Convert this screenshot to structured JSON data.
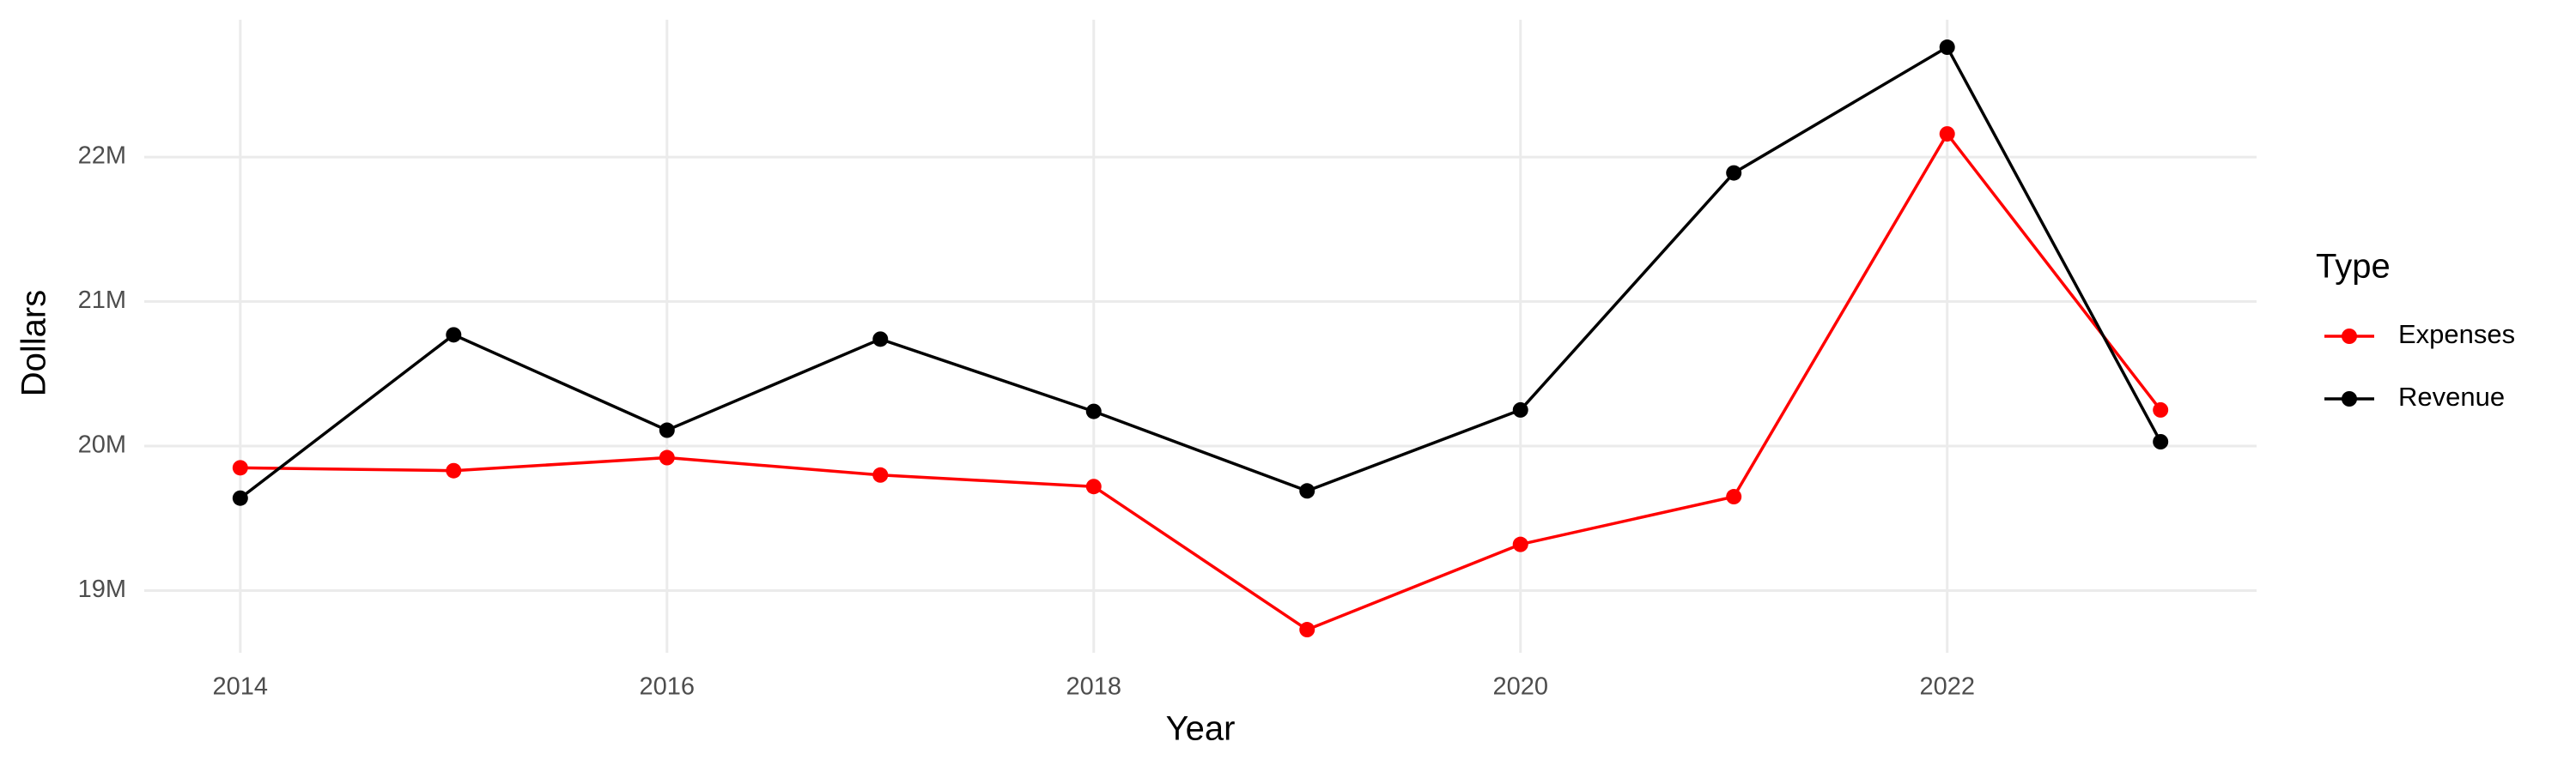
{
  "chart_data": {
    "type": "line",
    "x_label": "Year",
    "y_label": "Dollars",
    "x": [
      2014,
      2015,
      2016,
      2017,
      2018,
      2019,
      2020,
      2021,
      2022,
      2023
    ],
    "series": [
      {
        "name": "Expenses",
        "color": "#ff0000",
        "values": [
          19850000,
          19830000,
          19920000,
          19800000,
          19720000,
          18730000,
          19320000,
          19650000,
          22160000,
          20250000
        ]
      },
      {
        "name": "Revenue",
        "color": "#000000",
        "values": [
          19640000,
          20770000,
          20110000,
          20740000,
          20240000,
          19690000,
          20250000,
          21890000,
          22760000,
          20030000
        ]
      }
    ],
    "xlim": [
      2013.55,
      2023.45
    ],
    "ylim": [
      18570000,
      22950000
    ],
    "xticks": [
      2014,
      2016,
      2018,
      2020,
      2022
    ],
    "yticks": [
      {
        "value": 19000000,
        "label": "19M"
      },
      {
        "value": 20000000,
        "label": "20M"
      },
      {
        "value": 21000000,
        "label": "21M"
      },
      {
        "value": 22000000,
        "label": "22M"
      }
    ],
    "grid": true,
    "legend_title": "Type",
    "legend_position": "right"
  }
}
